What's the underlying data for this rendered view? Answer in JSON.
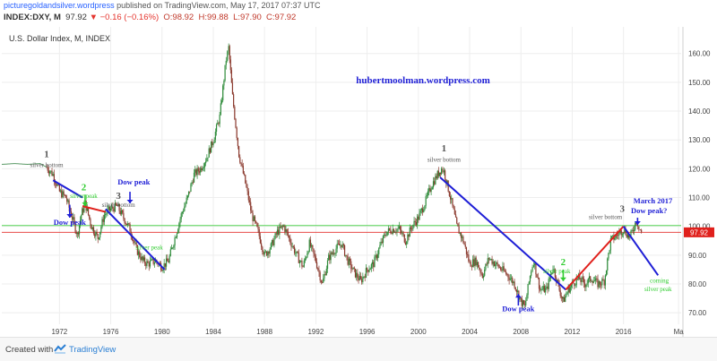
{
  "header": {
    "site": "picturegoldandsilver.wordpress",
    "published": " published on TradingView.com, May 17, 2017 07:37 UTC",
    "symbol": "INDEX:DXY, M",
    "last": "97.92",
    "arrow": "▼",
    "change": "−0.16 (−0.16%)",
    "o": "O:98.92",
    "h": "H:99.88",
    "l": "L:97.90",
    "c": "C:97.92"
  },
  "chart_title": "U.S. Dollar Index, M, INDEX",
  "watermark": "hubertmoolman.wordpress.com",
  "price_badge": "97.92",
  "colors": {
    "up": "#2e8b3a",
    "down": "#8b3a2e",
    "trend": "#1f1fd6",
    "red_line": "#e0201c",
    "green_line": "#2ecc2e",
    "label_blue": "#1f1fd6",
    "label_green": "#22cc22"
  },
  "footer": {
    "created": "Created with",
    "brand": "TradingView"
  },
  "chart_data": {
    "type": "line",
    "title": "U.S. Dollar Index, M, INDEX",
    "xlabel": "",
    "ylabel": "",
    "x_ticks": [
      "1972",
      "1976",
      "1980",
      "1984",
      "1988",
      "1992",
      "1996",
      "2000",
      "2004",
      "2008",
      "2012",
      "2016",
      "Ma"
    ],
    "y_ticks": [
      70.0,
      80.0,
      90.0,
      100.0,
      110.0,
      120.0,
      130.0,
      140.0,
      150.0,
      160.0
    ],
    "xlim": [
      1967.5,
      2020.5
    ],
    "ylim": [
      66,
      168
    ],
    "series": [
      {
        "values": [
          [
            1967.5,
            121.5
          ],
          [
            1968.5,
            121.8
          ],
          [
            1969.5,
            121.5
          ],
          [
            1970.5,
            121.8
          ],
          [
            1971.0,
            120.5
          ],
          [
            1971.5,
            118
          ],
          [
            1972.0,
            112
          ],
          [
            1972.5,
            110
          ],
          [
            1973.0,
            103
          ],
          [
            1973.4,
            97
          ],
          [
            1973.7,
            104
          ],
          [
            1974.0,
            108
          ],
          [
            1974.5,
            100
          ],
          [
            1975.0,
            96
          ],
          [
            1975.5,
            104
          ],
          [
            1976.0,
            106
          ],
          [
            1976.5,
            107
          ],
          [
            1977.0,
            103
          ],
          [
            1977.5,
            99
          ],
          [
            1978.0,
            92
          ],
          [
            1978.5,
            88
          ],
          [
            1978.9,
            87
          ],
          [
            1979.5,
            88
          ],
          [
            1980.0,
            86
          ],
          [
            1980.5,
            88
          ],
          [
            1981.0,
            96
          ],
          [
            1981.5,
            104
          ],
          [
            1982.0,
            110
          ],
          [
            1982.5,
            118
          ],
          [
            1983.0,
            120
          ],
          [
            1983.5,
            124
          ],
          [
            1984.0,
            130
          ],
          [
            1984.5,
            138
          ],
          [
            1985.0,
            158
          ],
          [
            1985.2,
            162
          ],
          [
            1985.5,
            145
          ],
          [
            1986.0,
            125
          ],
          [
            1986.5,
            115
          ],
          [
            1987.0,
            104
          ],
          [
            1987.5,
            98
          ],
          [
            1988.0,
            90
          ],
          [
            1988.5,
            93
          ],
          [
            1989.0,
            98
          ],
          [
            1989.5,
            100
          ],
          [
            1990.0,
            95
          ],
          [
            1990.5,
            90
          ],
          [
            1991.0,
            86
          ],
          [
            1991.5,
            94
          ],
          [
            1992.0,
            88
          ],
          [
            1992.5,
            80
          ],
          [
            1993.0,
            89
          ],
          [
            1993.5,
            92
          ],
          [
            1994.0,
            94
          ],
          [
            1994.5,
            88
          ],
          [
            1995.0,
            84
          ],
          [
            1995.5,
            81
          ],
          [
            1996.0,
            85
          ],
          [
            1996.5,
            87
          ],
          [
            1997.0,
            93
          ],
          [
            1997.5,
            98
          ],
          [
            1998.0,
            99
          ],
          [
            1998.5,
            99
          ],
          [
            1999.0,
            95
          ],
          [
            1999.5,
            100
          ],
          [
            2000.0,
            103
          ],
          [
            2000.5,
            108
          ],
          [
            2001.0,
            114
          ],
          [
            2001.5,
            118
          ],
          [
            2001.8,
            120
          ],
          [
            2002.0,
            119
          ],
          [
            2002.5,
            110
          ],
          [
            2003.0,
            100
          ],
          [
            2003.5,
            95
          ],
          [
            2004.0,
            87
          ],
          [
            2004.5,
            88
          ],
          [
            2005.0,
            83
          ],
          [
            2005.5,
            89
          ],
          [
            2006.0,
            87
          ],
          [
            2006.5,
            85
          ],
          [
            2007.0,
            83
          ],
          [
            2007.5,
            80
          ],
          [
            2008.0,
            74
          ],
          [
            2008.3,
            72
          ],
          [
            2008.8,
            85
          ],
          [
            2009.0,
            88
          ],
          [
            2009.5,
            78
          ],
          [
            2010.0,
            78
          ],
          [
            2010.5,
            86
          ],
          [
            2011.0,
            78
          ],
          [
            2011.3,
            74
          ],
          [
            2011.7,
            78
          ],
          [
            2012.0,
            80
          ],
          [
            2012.5,
            82
          ],
          [
            2013.0,
            80
          ],
          [
            2013.5,
            82
          ],
          [
            2014.0,
            80
          ],
          [
            2014.5,
            81
          ],
          [
            2015.0,
            95
          ],
          [
            2015.5,
            97
          ],
          [
            2016.0,
            99
          ],
          [
            2016.5,
            96
          ],
          [
            2017.0,
            102
          ],
          [
            2017.2,
            100
          ],
          [
            2017.4,
            97.92
          ]
        ]
      }
    ],
    "trendlines": [
      {
        "color": "blue",
        "points": [
          [
            1971.5,
            116
          ],
          [
            1973.8,
            110
          ]
        ]
      },
      {
        "color": "red",
        "points": [
          [
            1973.8,
            107
          ],
          [
            1975.6,
            105
          ]
        ]
      },
      {
        "color": "blue",
        "points": [
          [
            1975.6,
            106
          ],
          [
            1980.2,
            85
          ]
        ]
      },
      {
        "color": "blue",
        "points": [
          [
            2001.7,
            117
          ],
          [
            2011.5,
            78
          ]
        ]
      },
      {
        "color": "red",
        "points": [
          [
            2011.5,
            78
          ],
          [
            2016.0,
            100
          ]
        ]
      },
      {
        "color": "blue",
        "points": [
          [
            2016.0,
            100
          ],
          [
            2018.7,
            83
          ]
        ]
      }
    ],
    "hlines": [
      {
        "y": 100.3,
        "color": "green"
      },
      {
        "y": 97.92,
        "color": "red"
      }
    ],
    "annotations": [
      {
        "text": "1",
        "x": 1971.0,
        "y": 124,
        "color": "gray",
        "kind": "number"
      },
      {
        "text": "silver bottom",
        "x": 1971.0,
        "y": 120.5,
        "color": "gray",
        "kind": "small"
      },
      {
        "text": "2",
        "x": 1973.9,
        "y": 112.5,
        "color": "green",
        "kind": "number"
      },
      {
        "text": "silver peak",
        "x": 1973.9,
        "y": 109.8,
        "color": "green",
        "kind": "small"
      },
      {
        "text": "3",
        "x": 1976.6,
        "y": 109.5,
        "color": "gray",
        "kind": "number"
      },
      {
        "text": "silver bottom",
        "x": 1976.6,
        "y": 106.8,
        "color": "gray",
        "kind": "small"
      },
      {
        "text": "Dow peak",
        "x": 1977.8,
        "y": 114.5,
        "color": "blue",
        "kind": "label"
      },
      {
        "text": "Dow peak",
        "x": 1972.8,
        "y": 100.5,
        "color": "blue",
        "kind": "label"
      },
      {
        "text": "silver peak",
        "x": 1979.0,
        "y": 92.0,
        "color": "green",
        "kind": "small"
      },
      {
        "text": "1",
        "x": 2002.0,
        "y": 126,
        "color": "gray",
        "kind": "number"
      },
      {
        "text": "silver bottom",
        "x": 2002.0,
        "y": 122.5,
        "color": "gray",
        "kind": "small"
      },
      {
        "text": "Dow peak",
        "x": 2007.8,
        "y": 70.5,
        "color": "blue",
        "kind": "label"
      },
      {
        "text": "2",
        "x": 2011.3,
        "y": 86.5,
        "color": "green",
        "kind": "number"
      },
      {
        "text": "silver peak",
        "x": 2010.8,
        "y": 83.8,
        "color": "green",
        "kind": "small"
      },
      {
        "text": "3",
        "x": 2015.9,
        "y": 105.0,
        "color": "gray",
        "kind": "number"
      },
      {
        "text": "silver bottom",
        "x": 2014.6,
        "y": 102.5,
        "color": "gray",
        "kind": "small"
      },
      {
        "text": "March 2017",
        "x": 2018.3,
        "y": 108.0,
        "color": "blue",
        "kind": "label"
      },
      {
        "text": "Dow peak?",
        "x": 2018.0,
        "y": 104.5,
        "color": "blue",
        "kind": "label"
      },
      {
        "text": "coming",
        "x": 2018.8,
        "y": 80.5,
        "color": "green",
        "kind": "small"
      },
      {
        "text": "silver peak",
        "x": 2018.7,
        "y": 77.5,
        "color": "green",
        "kind": "small"
      }
    ],
    "arrows": [
      {
        "color": "blue",
        "from": [
          1977.5,
          112.0
        ],
        "to": [
          1977.5,
          108.0
        ]
      },
      {
        "color": "blue",
        "from": [
          1972.8,
          107.5
        ],
        "to": [
          1972.8,
          103.0
        ]
      },
      {
        "color": "green",
        "from": [
          1974.0,
          111.0
        ],
        "to": [
          1974.0,
          107.0
        ]
      },
      {
        "color": "blue",
        "from": [
          2007.8,
          72.5
        ],
        "to": [
          2007.8,
          76.5
        ]
      },
      {
        "color": "green",
        "from": [
          2011.3,
          85.0
        ],
        "to": [
          2011.3,
          81.0
        ]
      },
      {
        "color": "blue",
        "from": [
          2017.1,
          103.0
        ],
        "to": [
          2017.1,
          100.5
        ]
      }
    ]
  }
}
